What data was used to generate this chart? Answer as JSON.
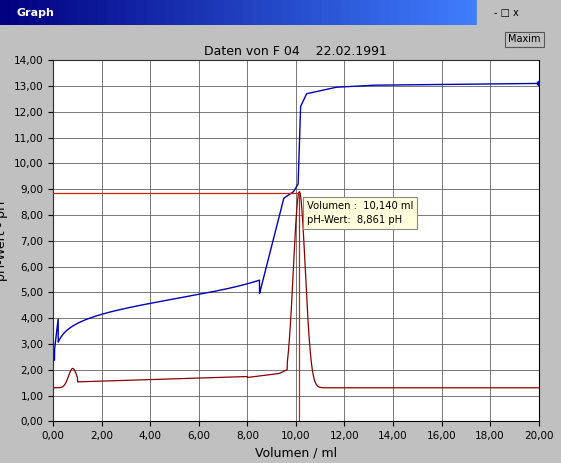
{
  "title": "Daten von F 04    22.02.1991",
  "xlabel": "Volumen / ml",
  "ylabel": "pH-Wert - pH",
  "xlim": [
    0,
    20
  ],
  "ylim": [
    0,
    14
  ],
  "xticks": [
    0,
    2,
    4,
    6,
    8,
    10,
    12,
    14,
    16,
    18,
    20
  ],
  "yticks": [
    0,
    1,
    2,
    3,
    4,
    5,
    6,
    7,
    8,
    9,
    10,
    11,
    12,
    13,
    14
  ],
  "xtick_labels": [
    "0,00",
    "2,00",
    "4,00",
    "6,00",
    "8,00",
    "10,00",
    "12,00",
    "14,00",
    "16,00",
    "18,00",
    "20,00"
  ],
  "ytick_labels": [
    "0,00",
    "1,00",
    "2,00",
    "3,00",
    "4,00",
    "5,00",
    "6,00",
    "7,00",
    "8,00",
    "9,00",
    "10,00",
    "11,00",
    "12,00",
    "13,00",
    "14,00"
  ],
  "blue_line_color": "#0000bb",
  "red_line_color": "#880000",
  "crosshair_color": "#cc2200",
  "crosshair_x": 10.14,
  "crosshair_y": 8.861,
  "tooltip_line1": "Volumen :  10,140 ml",
  "tooltip_line2": "pH-Wert:  8,861 pH",
  "bg_color": "#c0c0c0",
  "plot_bg_color": "#ffffff",
  "window_title": "Graph",
  "button_label": "Maxim",
  "ep": 10.14,
  "title_bar_color1": "#000080",
  "title_bar_color2": "#4080c0"
}
